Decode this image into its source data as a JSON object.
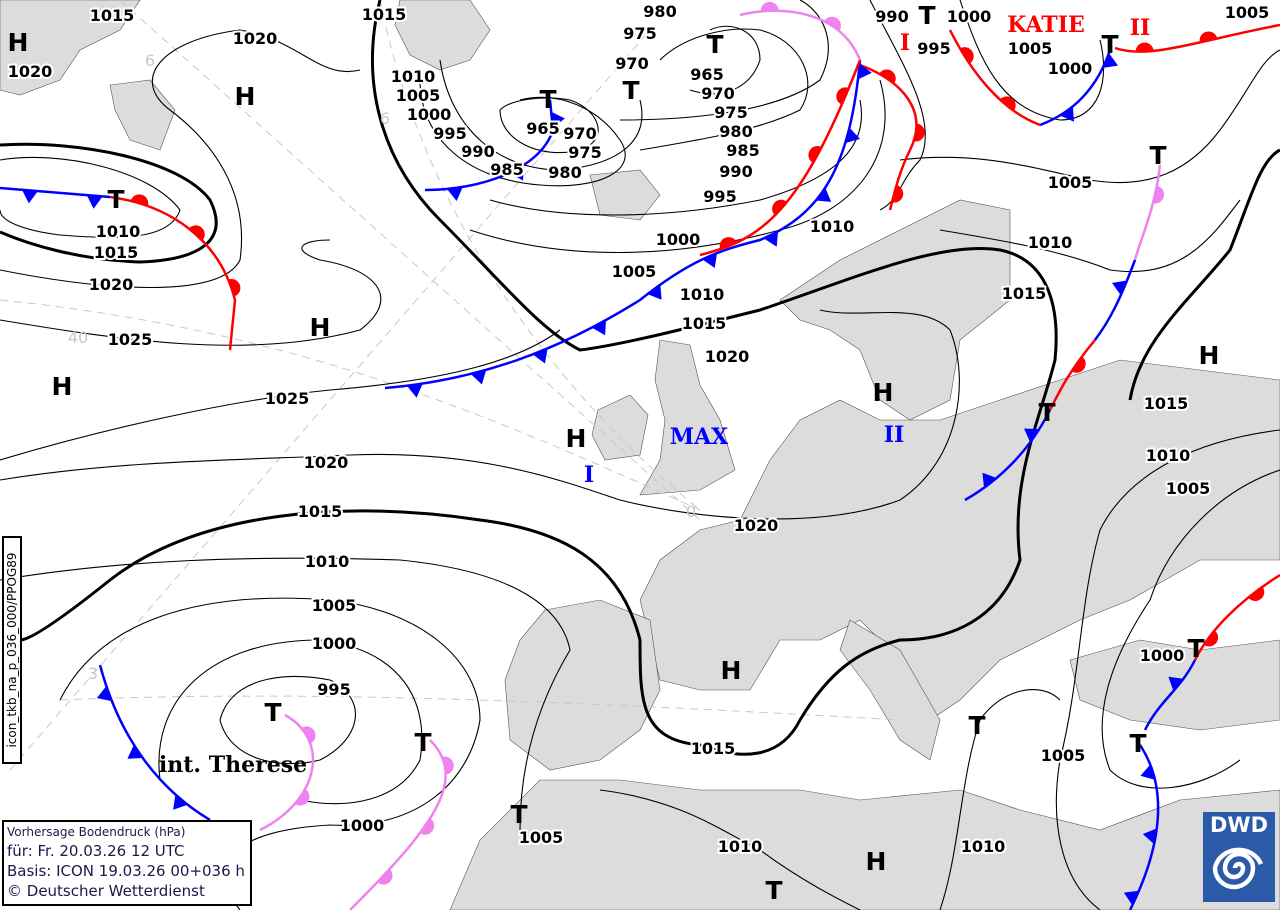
{
  "map": {
    "product_label": "icon_tkb_na_p_036_000/PPOG89",
    "legend": {
      "title": "Vorhersage Bodendruck (hPa)",
      "valid": "für:  Fr. 20.03.26  12 UTC",
      "basis": "Basis: ICON  19.03.26 00+036 h",
      "copyright": "© Deutscher Wetterdienst"
    },
    "logo": {
      "text": "DWD",
      "color": "#2a5aa8"
    },
    "colors": {
      "land": "#dcdcdc",
      "cold_front": "#0000ff",
      "warm_front": "#ff0000",
      "occlusion": "#ee82ee"
    },
    "isobar_labels": [
      "1015",
      "1020",
      "1020",
      "1015",
      "980",
      "975",
      "990",
      "1000",
      "1005",
      "1005",
      "1010",
      "1005",
      "1000",
      "995",
      "990",
      "985",
      "965",
      "970",
      "975",
      "980",
      "970",
      "965",
      "970",
      "975",
      "980",
      "985",
      "990",
      "995",
      "995",
      "1000",
      "1005",
      "1010",
      "1015",
      "1015",
      "1010",
      "1005",
      "1010",
      "1015",
      "1020",
      "1025",
      "1025",
      "1020",
      "1015",
      "1010",
      "1005",
      "1000",
      "995",
      "1000",
      "1005",
      "1010",
      "1015",
      "1020",
      "1020",
      "1015",
      "1010",
      "1005",
      "1000",
      "1010",
      "1000",
      "1005",
      "1010"
    ],
    "pressure_systems": [
      "H",
      "H",
      "H",
      "H",
      "H",
      "H",
      "H",
      "H",
      "H",
      "T",
      "T",
      "T",
      "T",
      "T",
      "T",
      "T",
      "T",
      "T",
      "T",
      "T",
      "T",
      "T",
      "T",
      "T"
    ],
    "system_names": [
      {
        "text": "KATIE",
        "color": "#ff0000"
      },
      {
        "text": "II",
        "color": "#ff0000"
      },
      {
        "text": "I",
        "color": "#ff0000"
      },
      {
        "text": "MAX",
        "color": "#0000ff"
      },
      {
        "text": "I",
        "color": "#0000ff"
      },
      {
        "text": "II",
        "color": "#0000ff"
      },
      {
        "text": "int. Therese",
        "color": "#000000"
      }
    ],
    "grid_labels": [
      "6",
      "6",
      "40",
      "0",
      "3"
    ]
  }
}
